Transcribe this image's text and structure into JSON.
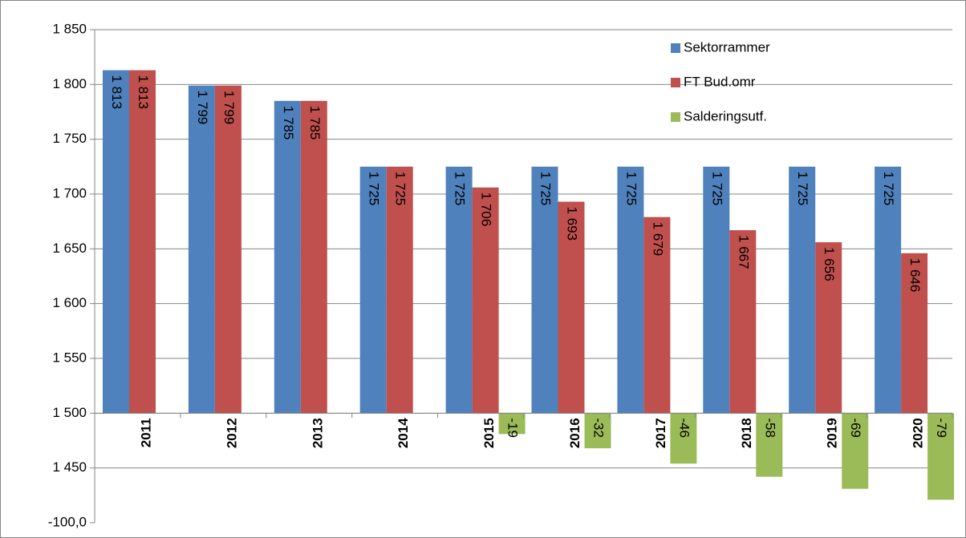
{
  "chart_data": {
    "type": "bar",
    "categories": [
      "2011",
      "2012",
      "2013",
      "2014",
      "2015",
      "2016",
      "2017",
      "2018",
      "2019",
      "2020"
    ],
    "series": [
      {
        "name": "Sektorrammer",
        "color": "#4f81bd",
        "values": [
          1813,
          1799,
          1785,
          1725,
          1725,
          1725,
          1725,
          1725,
          1725,
          1725
        ],
        "value_labels": [
          "1 813",
          "1 799",
          "1 785",
          "1 725",
          "1 725",
          "1 725",
          "1 725",
          "1 725",
          "1 725",
          "1 725"
        ]
      },
      {
        "name": "FT Bud.omr",
        "color": "#c0504d",
        "values": [
          1813,
          1799,
          1785,
          1725,
          1706,
          1693,
          1679,
          1667,
          1656,
          1646
        ],
        "value_labels": [
          "1 813",
          "1 799",
          "1 785",
          "1 725",
          "1 706",
          "1 693",
          "1 679",
          "1 667",
          "1 656",
          "1 646"
        ]
      },
      {
        "name": "Salderingsutf.",
        "color": "#9bbb59",
        "axis": "y2",
        "values": [
          null,
          null,
          null,
          null,
          -19,
          -32,
          -46,
          -58,
          -69,
          -79
        ]
      }
    ],
    "ylim": [
      1400,
      1850
    ],
    "yticks": [
      {
        "value": 1850,
        "label": "1 850"
      },
      {
        "value": 1800,
        "label": "1 800"
      },
      {
        "value": 1750,
        "label": "1 750"
      },
      {
        "value": 1700,
        "label": "1 700"
      },
      {
        "value": 1650,
        "label": "1 650"
      },
      {
        "value": 1600,
        "label": "1 600"
      },
      {
        "value": 1550,
        "label": "1 550"
      },
      {
        "value": 1500,
        "label": "1 500"
      },
      {
        "value": 1450,
        "label": "1 450"
      }
    ],
    "x_axis_crosses": 1500,
    "y2lim": [
      -100,
      350
    ],
    "y2ticks": [
      {
        "value": -100,
        "label": "-100,0"
      }
    ],
    "grid": true,
    "legend": "upper right"
  }
}
